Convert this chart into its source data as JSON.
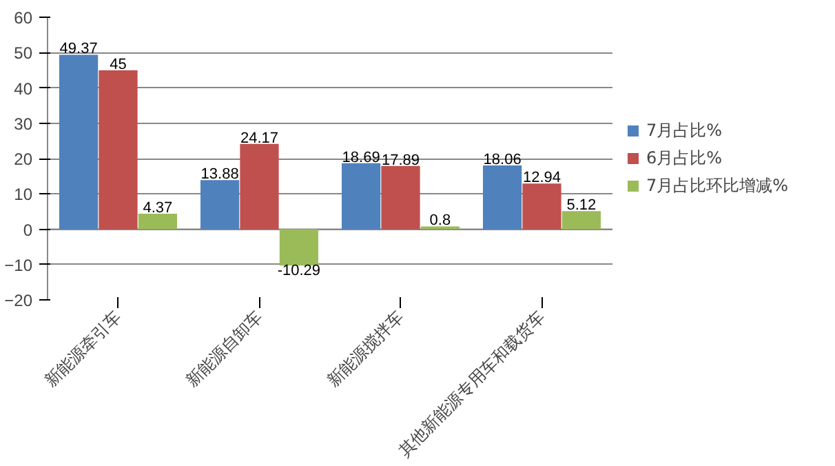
{
  "chart_data": {
    "type": "bar",
    "categories": [
      "新能源牵引车",
      "新能源自卸车",
      "新能源搅拌车",
      "其他新能源专用车和载货车"
    ],
    "series": [
      {
        "name": "7月占比%",
        "color": "#4f81bd",
        "values": [
          49.37,
          13.88,
          18.69,
          18.06
        ]
      },
      {
        "name": "6月占比%",
        "color": "#c0504d",
        "values": [
          45,
          24.17,
          17.89,
          12.94
        ]
      },
      {
        "name": "7月占比环比增减%",
        "color": "#9bbb59",
        "values": [
          4.37,
          -10.29,
          0.8,
          5.12
        ]
      }
    ],
    "ylim": [
      -20,
      60
    ],
    "yticks": [
      -20,
      -10,
      0,
      10,
      20,
      30,
      40,
      50,
      60
    ],
    "grid": "y",
    "legend": "right",
    "data_labels": true
  }
}
